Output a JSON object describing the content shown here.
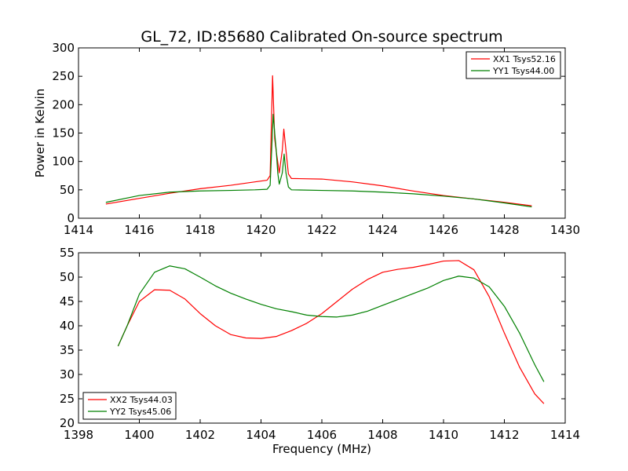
{
  "figure": {
    "title": "GL_72, ID:85680 Calibrated On-source spectrum"
  },
  "chart_data": [
    {
      "type": "line",
      "ylabel": "Power in Kelvin",
      "xlabel": "",
      "xlim": [
        1414,
        1430
      ],
      "ylim": [
        0,
        300
      ],
      "xticks": [
        1414,
        1416,
        1418,
        1420,
        1422,
        1424,
        1426,
        1428,
        1430
      ],
      "yticks": [
        0,
        50,
        100,
        150,
        200,
        250,
        300
      ],
      "grid": false,
      "legend": "top-right",
      "series": [
        {
          "name": "XX1 Tsys52.16",
          "color": "#ff0000",
          "points": [
            [
              1414.9,
              25
            ],
            [
              1416,
              35
            ],
            [
              1417,
              44
            ],
            [
              1418,
              52
            ],
            [
              1419,
              58
            ],
            [
              1419.8,
              64
            ],
            [
              1420.2,
              67
            ],
            [
              1420.3,
              75
            ],
            [
              1420.38,
              251
            ],
            [
              1420.45,
              140
            ],
            [
              1420.5,
              118
            ],
            [
              1420.6,
              80
            ],
            [
              1420.7,
              120
            ],
            [
              1420.75,
              157
            ],
            [
              1420.8,
              130
            ],
            [
              1420.9,
              78
            ],
            [
              1421,
              70
            ],
            [
              1422,
              69
            ],
            [
              1423,
              64
            ],
            [
              1424,
              57
            ],
            [
              1425,
              48
            ],
            [
              1426,
              40
            ],
            [
              1427,
              34
            ],
            [
              1428,
              28
            ],
            [
              1428.9,
              22
            ]
          ]
        },
        {
          "name": "YY1 Tsys44.00",
          "color": "#008000",
          "points": [
            [
              1414.9,
              28
            ],
            [
              1416,
              40
            ],
            [
              1417,
              46
            ],
            [
              1418,
              48
            ],
            [
              1419,
              49
            ],
            [
              1419.8,
              50
            ],
            [
              1420.2,
              51
            ],
            [
              1420.3,
              58
            ],
            [
              1420.4,
              183
            ],
            [
              1420.45,
              150
            ],
            [
              1420.5,
              120
            ],
            [
              1420.55,
              80
            ],
            [
              1420.6,
              60
            ],
            [
              1420.7,
              80
            ],
            [
              1420.76,
              113
            ],
            [
              1420.82,
              80
            ],
            [
              1420.9,
              55
            ],
            [
              1421,
              50
            ],
            [
              1422,
              49
            ],
            [
              1423,
              48
            ],
            [
              1424,
              46
            ],
            [
              1425,
              43
            ],
            [
              1426,
              39
            ],
            [
              1427,
              34
            ],
            [
              1428,
              27
            ],
            [
              1428.9,
              20
            ]
          ]
        }
      ]
    },
    {
      "type": "line",
      "ylabel": "",
      "xlabel": "Frequency (MHz)",
      "xlim": [
        1398,
        1414
      ],
      "ylim": [
        20,
        55
      ],
      "xticks": [
        1398,
        1400,
        1402,
        1404,
        1406,
        1408,
        1410,
        1412,
        1414
      ],
      "yticks": [
        20,
        25,
        30,
        35,
        40,
        45,
        50,
        55
      ],
      "grid": false,
      "legend": "bottom-left",
      "series": [
        {
          "name": "XX2 Tsys44.03",
          "color": "#ff0000",
          "points": [
            [
              1399.3,
              35.8
            ],
            [
              1399.6,
              40
            ],
            [
              1400,
              45
            ],
            [
              1400.5,
              47.4
            ],
            [
              1401,
              47.3
            ],
            [
              1401.5,
              45.5
            ],
            [
              1402,
              42.5
            ],
            [
              1402.5,
              40
            ],
            [
              1403,
              38.2
            ],
            [
              1403.5,
              37.5
            ],
            [
              1404,
              37.4
            ],
            [
              1404.5,
              37.8
            ],
            [
              1405,
              39
            ],
            [
              1405.5,
              40.5
            ],
            [
              1406,
              42.5
            ],
            [
              1406.5,
              45
            ],
            [
              1407,
              47.5
            ],
            [
              1407.5,
              49.5
            ],
            [
              1408,
              51
            ],
            [
              1408.5,
              51.6
            ],
            [
              1409,
              52
            ],
            [
              1409.5,
              52.6
            ],
            [
              1410,
              53.3
            ],
            [
              1410.5,
              53.4
            ],
            [
              1411,
              51.5
            ],
            [
              1411.5,
              46
            ],
            [
              1412,
              38.5
            ],
            [
              1412.5,
              31.5
            ],
            [
              1413,
              26
            ],
            [
              1413.3,
              24
            ]
          ]
        },
        {
          "name": "YY2 Tsys45.06",
          "color": "#008000",
          "points": [
            [
              1399.3,
              35.8
            ],
            [
              1399.6,
              40
            ],
            [
              1400,
              46.5
            ],
            [
              1400.5,
              51
            ],
            [
              1401,
              52.3
            ],
            [
              1401.5,
              51.7
            ],
            [
              1402,
              50
            ],
            [
              1402.5,
              48.2
            ],
            [
              1403,
              46.7
            ],
            [
              1403.5,
              45.5
            ],
            [
              1404,
              44.4
            ],
            [
              1404.5,
              43.5
            ],
            [
              1405,
              42.9
            ],
            [
              1405.5,
              42.2
            ],
            [
              1406,
              41.9
            ],
            [
              1406.5,
              41.8
            ],
            [
              1407,
              42.2
            ],
            [
              1407.5,
              43
            ],
            [
              1408,
              44.2
            ],
            [
              1408.5,
              45.4
            ],
            [
              1409,
              46.6
            ],
            [
              1409.5,
              47.8
            ],
            [
              1410,
              49.3
            ],
            [
              1410.5,
              50.2
            ],
            [
              1411,
              49.8
            ],
            [
              1411.5,
              48
            ],
            [
              1412,
              44
            ],
            [
              1412.5,
              38.5
            ],
            [
              1413,
              32
            ],
            [
              1413.3,
              28.5
            ]
          ]
        }
      ]
    }
  ]
}
